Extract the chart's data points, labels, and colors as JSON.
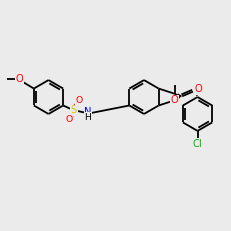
{
  "bg": "#ebebeb",
  "C": "#000000",
  "O": "#ff0000",
  "S": "#cccc00",
  "N": "#0000ff",
  "Cl": "#00bb00",
  "lw": 1.3,
  "fs": 7.2,
  "inner_off": 3.2
}
